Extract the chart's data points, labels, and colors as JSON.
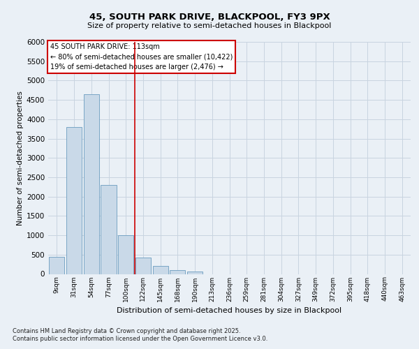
{
  "title1": "45, SOUTH PARK DRIVE, BLACKPOOL, FY3 9PX",
  "title2": "Size of property relative to semi-detached houses in Blackpool",
  "xlabel": "Distribution of semi-detached houses by size in Blackpool",
  "ylabel": "Number of semi-detached properties",
  "bar_labels": [
    "9sqm",
    "31sqm",
    "54sqm",
    "77sqm",
    "100sqm",
    "122sqm",
    "145sqm",
    "168sqm",
    "190sqm",
    "213sqm",
    "236sqm",
    "259sqm",
    "281sqm",
    "304sqm",
    "327sqm",
    "349sqm",
    "372sqm",
    "395sqm",
    "418sqm",
    "440sqm",
    "463sqm"
  ],
  "bar_values": [
    440,
    3800,
    4650,
    2300,
    1000,
    430,
    200,
    100,
    70,
    0,
    0,
    0,
    0,
    0,
    0,
    0,
    0,
    0,
    0,
    0,
    0
  ],
  "bar_color": "#c9d9e8",
  "bar_edge_color": "#6a9cbf",
  "grid_color": "#c8d4e0",
  "background_color": "#eaf0f6",
  "annotation_text": "45 SOUTH PARK DRIVE: 113sqm\n← 80% of semi-detached houses are smaller (10,422)\n19% of semi-detached houses are larger (2,476) →",
  "annotation_box_color": "#ffffff",
  "annotation_box_edge": "#cc0000",
  "vline_x": 4.5,
  "vline_color": "#cc0000",
  "ylim": [
    0,
    6000
  ],
  "yticks": [
    0,
    500,
    1000,
    1500,
    2000,
    2500,
    3000,
    3500,
    4000,
    4500,
    5000,
    5500,
    6000
  ],
  "footer1": "Contains HM Land Registry data © Crown copyright and database right 2025.",
  "footer2": "Contains public sector information licensed under the Open Government Licence v3.0."
}
